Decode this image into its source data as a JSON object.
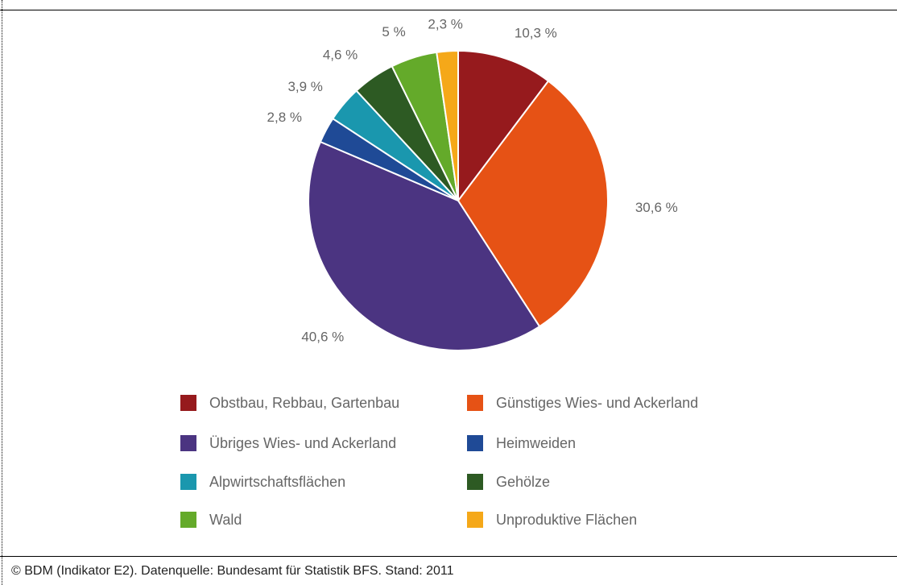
{
  "chart_data": {
    "type": "pie",
    "title": "",
    "start_angle_deg": 0,
    "slices": [
      {
        "label": "Obstbau, Rebbau, Gartenbau",
        "value": 10.3,
        "display": "10,3 %",
        "color": "#961a1d"
      },
      {
        "label": "Günstiges Wies- und Ackerland",
        "value": 30.6,
        "display": "30,6 %",
        "color": "#e65215"
      },
      {
        "label": "Übriges Wies- und Ackerland",
        "value": 40.6,
        "display": "40,6 %",
        "color": "#4b3481"
      },
      {
        "label": "Heimweiden",
        "value": 2.8,
        "display": "2,8 %",
        "color": "#1f4a96"
      },
      {
        "label": "Alpwirtschaftsflächen",
        "value": 3.9,
        "display": "3,9 %",
        "color": "#1a97ae"
      },
      {
        "label": "Gehölze",
        "value": 4.6,
        "display": "4,6 %",
        "color": "#2d5a23"
      },
      {
        "label": "Wald",
        "value": 5.0,
        "display": "5 %",
        "color": "#64aa2a"
      },
      {
        "label": "Unproduktive Flächen",
        "value": 2.3,
        "display": "2,3 %",
        "color": "#f5a819"
      }
    ],
    "legend_placement": "bottom"
  },
  "footer": {
    "text": "©  BDM (Indikator E2). Datenquelle: Bundesamt für Statistik BFS. Stand: 2011"
  }
}
